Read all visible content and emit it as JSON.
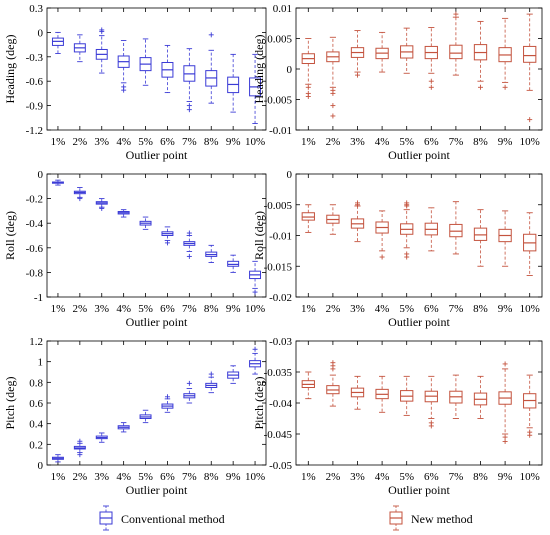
{
  "chart_data": [
    {
      "type": "box",
      "method": "Conventional method",
      "color": "#3b3bd6",
      "categories": [
        "1%",
        "2%",
        "3%",
        "4%",
        "5%",
        "6%",
        "7%",
        "8%",
        "9%",
        "10%"
      ],
      "xlabel": "Outlier point",
      "ylabel": "Heading (deg)",
      "ylim": [
        -1.2,
        0.3
      ],
      "yticks": [
        -1.2,
        -0.9,
        -0.6,
        -0.3,
        0,
        0.3
      ],
      "ytick_labels": [
        "-1.2",
        "-0.9",
        "-0.6",
        "-0.3",
        "0",
        "0.3"
      ],
      "boxes": [
        {
          "whisker_low": -0.26,
          "q1": -0.16,
          "median": -0.11,
          "q3": -0.07,
          "whisker_high": 0.0,
          "outliers": []
        },
        {
          "whisker_low": -0.36,
          "q1": -0.24,
          "median": -0.19,
          "q3": -0.14,
          "whisker_high": -0.03,
          "outliers": []
        },
        {
          "whisker_low": -0.5,
          "q1": -0.33,
          "median": -0.27,
          "q3": -0.21,
          "whisker_high": -0.04,
          "outliers": [
            0.01,
            0.03
          ]
        },
        {
          "whisker_low": -0.62,
          "q1": -0.43,
          "median": -0.36,
          "q3": -0.29,
          "whisker_high": -0.1,
          "outliers": [
            -0.67,
            -0.71
          ]
        },
        {
          "whisker_low": -0.65,
          "q1": -0.47,
          "median": -0.39,
          "q3": -0.31,
          "whisker_high": -0.08,
          "outliers": []
        },
        {
          "whisker_low": -0.74,
          "q1": -0.55,
          "median": -0.46,
          "q3": -0.37,
          "whisker_high": -0.16,
          "outliers": []
        },
        {
          "whisker_low": -0.85,
          "q1": -0.6,
          "median": -0.51,
          "q3": -0.41,
          "whisker_high": -0.2,
          "outliers": [
            -0.9,
            -0.95
          ]
        },
        {
          "whisker_low": -0.87,
          "q1": -0.66,
          "median": -0.56,
          "q3": -0.47,
          "whisker_high": -0.22,
          "outliers": [
            -0.03
          ]
        },
        {
          "whisker_low": -0.98,
          "q1": -0.74,
          "median": -0.64,
          "q3": -0.55,
          "whisker_high": -0.27,
          "outliers": []
        },
        {
          "whisker_low": -1.12,
          "q1": -0.78,
          "median": -0.67,
          "q3": -0.56,
          "whisker_high": -0.27,
          "outliers": []
        }
      ]
    },
    {
      "type": "box",
      "method": "New method",
      "color": "#c4533e",
      "categories": [
        "1%",
        "2%",
        "3%",
        "4%",
        "5%",
        "6%",
        "7%",
        "8%",
        "9%",
        "10%"
      ],
      "xlabel": "Outlier point",
      "ylabel": "Heading (deg)",
      "ylim": [
        -0.01,
        0.01
      ],
      "yticks": [
        -0.01,
        -0.005,
        0,
        0.005,
        0.01
      ],
      "ytick_labels": [
        "-0.01",
        "-0.005",
        "0",
        "0.005",
        "0.01"
      ],
      "boxes": [
        {
          "whisker_low": -0.0025,
          "q1": 0.0009,
          "median": 0.0017,
          "q3": 0.0025,
          "whisker_high": 0.005,
          "outliers": [
            -0.003,
            -0.004,
            -0.0045
          ]
        },
        {
          "whisker_low": -0.003,
          "q1": 0.0012,
          "median": 0.002,
          "q3": 0.0028,
          "whisker_high": 0.0052,
          "outliers": [
            -0.0035,
            -0.004,
            -0.006,
            -0.0077
          ]
        },
        {
          "whisker_low": -0.0005,
          "q1": 0.0019,
          "median": 0.0027,
          "q3": 0.0035,
          "whisker_high": 0.0063,
          "outliers": [
            -0.001
          ]
        },
        {
          "whisker_low": -0.0005,
          "q1": 0.0017,
          "median": 0.0026,
          "q3": 0.0034,
          "whisker_high": 0.006,
          "outliers": []
        },
        {
          "whisker_low": -0.0007,
          "q1": 0.0018,
          "median": 0.0028,
          "q3": 0.0038,
          "whisker_high": 0.0067,
          "outliers": []
        },
        {
          "whisker_low": -0.0007,
          "q1": 0.0017,
          "median": 0.0027,
          "q3": 0.0037,
          "whisker_high": 0.0068,
          "outliers": [
            -0.002,
            -0.003
          ]
        },
        {
          "whisker_low": -0.001,
          "q1": 0.0017,
          "median": 0.0026,
          "q3": 0.0039,
          "whisker_high": 0.0085,
          "outliers": [
            0.009
          ]
        },
        {
          "whisker_low": -0.002,
          "q1": 0.0015,
          "median": 0.0027,
          "q3": 0.004,
          "whisker_high": 0.0078,
          "outliers": [
            -0.003
          ]
        },
        {
          "whisker_low": -0.0022,
          "q1": 0.0012,
          "median": 0.0023,
          "q3": 0.0035,
          "whisker_high": 0.0083,
          "outliers": [
            -0.003
          ]
        },
        {
          "whisker_low": -0.0035,
          "q1": 0.0011,
          "median": 0.0022,
          "q3": 0.0037,
          "whisker_high": 0.009,
          "outliers": [
            -0.0083
          ]
        }
      ]
    },
    {
      "type": "box",
      "method": "Conventional method",
      "color": "#3b3bd6",
      "categories": [
        "1%",
        "2%",
        "3%",
        "4%",
        "5%",
        "6%",
        "7%",
        "8%",
        "9%",
        "10%"
      ],
      "xlabel": "Outlier point",
      "ylabel": "Roll (deg)",
      "ylim": [
        -1,
        0
      ],
      "yticks": [
        -1,
        -0.8,
        -0.6,
        -0.4,
        -0.2,
        0
      ],
      "ytick_labels": [
        "-1",
        "-0.8",
        "-0.6",
        "-0.4",
        "-0.2",
        "0"
      ],
      "boxes": [
        {
          "whisker_low": -0.09,
          "q1": -0.075,
          "median": -0.07,
          "q3": -0.065,
          "whisker_high": -0.05,
          "outliers": []
        },
        {
          "whisker_low": -0.19,
          "q1": -0.16,
          "median": -0.15,
          "q3": -0.14,
          "whisker_high": -0.11,
          "outliers": [
            -0.2
          ]
        },
        {
          "whisker_low": -0.27,
          "q1": -0.245,
          "median": -0.235,
          "q3": -0.225,
          "whisker_high": -0.2,
          "outliers": [
            -0.28
          ]
        },
        {
          "whisker_low": -0.35,
          "q1": -0.325,
          "median": -0.315,
          "q3": -0.305,
          "whisker_high": -0.29,
          "outliers": []
        },
        {
          "whisker_low": -0.45,
          "q1": -0.415,
          "median": -0.4,
          "q3": -0.385,
          "whisker_high": -0.35,
          "outliers": []
        },
        {
          "whisker_low": -0.54,
          "q1": -0.5,
          "median": -0.485,
          "q3": -0.47,
          "whisker_high": -0.43,
          "outliers": [
            -0.56
          ]
        },
        {
          "whisker_low": -0.63,
          "q1": -0.58,
          "median": -0.565,
          "q3": -0.55,
          "whisker_high": -0.5,
          "outliers": [
            -0.48,
            -0.67
          ]
        },
        {
          "whisker_low": -0.72,
          "q1": -0.67,
          "median": -0.655,
          "q3": -0.635,
          "whisker_high": -0.58,
          "outliers": []
        },
        {
          "whisker_low": -0.8,
          "q1": -0.75,
          "median": -0.735,
          "q3": -0.71,
          "whisker_high": -0.66,
          "outliers": []
        },
        {
          "whisker_low": -0.93,
          "q1": -0.85,
          "median": -0.82,
          "q3": -0.79,
          "whisker_high": -0.71,
          "outliers": [
            -0.96
          ]
        }
      ]
    },
    {
      "type": "box",
      "method": "New method",
      "color": "#c4533e",
      "categories": [
        "1%",
        "2%",
        "3%",
        "4%",
        "5%",
        "6%",
        "7%",
        "8%",
        "9%",
        "10%"
      ],
      "xlabel": "Outlier point",
      "ylabel": "Roll (deg)",
      "ylim": [
        -0.02,
        0
      ],
      "yticks": [
        -0.02,
        -0.015,
        -0.01,
        -0.005,
        0
      ],
      "ytick_labels": [
        "-0.02",
        "-0.015",
        "-0.01",
        "-0.005",
        "0"
      ],
      "boxes": [
        {
          "whisker_low": -0.0095,
          "q1": -0.0075,
          "median": -0.007,
          "q3": -0.0063,
          "whisker_high": -0.005,
          "outliers": []
        },
        {
          "whisker_low": -0.0098,
          "q1": -0.008,
          "median": -0.0074,
          "q3": -0.0067,
          "whisker_high": -0.005,
          "outliers": []
        },
        {
          "whisker_low": -0.011,
          "q1": -0.0088,
          "median": -0.0081,
          "q3": -0.0073,
          "whisker_high": -0.0052,
          "outliers": [
            -0.0047,
            -0.005
          ]
        },
        {
          "whisker_low": -0.0125,
          "q1": -0.0096,
          "median": -0.0087,
          "q3": -0.0078,
          "whisker_high": -0.006,
          "outliers": [
            -0.0135
          ]
        },
        {
          "whisker_low": -0.012,
          "q1": -0.0098,
          "median": -0.009,
          "q3": -0.0081,
          "whisker_high": -0.0058,
          "outliers": [
            -0.0047,
            -0.005,
            -0.0052,
            -0.013,
            -0.0135
          ]
        },
        {
          "whisker_low": -0.0125,
          "q1": -0.0099,
          "median": -0.009,
          "q3": -0.008,
          "whisker_high": -0.0055,
          "outliers": []
        },
        {
          "whisker_low": -0.013,
          "q1": -0.0102,
          "median": -0.0093,
          "q3": -0.0082,
          "whisker_high": -0.0045,
          "outliers": []
        },
        {
          "whisker_low": -0.015,
          "q1": -0.0108,
          "median": -0.0099,
          "q3": -0.0088,
          "whisker_high": -0.0058,
          "outliers": []
        },
        {
          "whisker_low": -0.015,
          "q1": -0.011,
          "median": -0.01,
          "q3": -0.009,
          "whisker_high": -0.006,
          "outliers": []
        },
        {
          "whisker_low": -0.0165,
          "q1": -0.0125,
          "median": -0.0112,
          "q3": -0.0098,
          "whisker_high": -0.0063,
          "outliers": []
        }
      ]
    },
    {
      "type": "box",
      "method": "Conventional method",
      "color": "#3b3bd6",
      "categories": [
        "1%",
        "2%",
        "3%",
        "4%",
        "5%",
        "6%",
        "7%",
        "8%",
        "9%",
        "10%"
      ],
      "xlabel": "Outlier point",
      "ylabel": "Pitch (deg)",
      "ylim": [
        0,
        1.2
      ],
      "yticks": [
        0,
        0.2,
        0.4,
        0.6,
        0.8,
        1,
        1.2
      ],
      "ytick_labels": [
        "0",
        "0.2",
        "0.4",
        "0.6",
        "0.8",
        "1",
        "1.2"
      ],
      "boxes": [
        {
          "whisker_low": 0.03,
          "q1": 0.055,
          "median": 0.065,
          "q3": 0.075,
          "whisker_high": 0.1,
          "outliers": []
        },
        {
          "whisker_low": 0.12,
          "q1": 0.155,
          "median": 0.165,
          "q3": 0.18,
          "whisker_high": 0.21,
          "outliers": [
            0.1,
            0.23
          ]
        },
        {
          "whisker_low": 0.22,
          "q1": 0.255,
          "median": 0.265,
          "q3": 0.28,
          "whisker_high": 0.31,
          "outliers": []
        },
        {
          "whisker_low": 0.32,
          "q1": 0.35,
          "median": 0.365,
          "q3": 0.38,
          "whisker_high": 0.41,
          "outliers": []
        },
        {
          "whisker_low": 0.41,
          "q1": 0.45,
          "median": 0.465,
          "q3": 0.485,
          "whisker_high": 0.53,
          "outliers": []
        },
        {
          "whisker_low": 0.51,
          "q1": 0.55,
          "median": 0.57,
          "q3": 0.59,
          "whisker_high": 0.64,
          "outliers": [
            0.66
          ]
        },
        {
          "whisker_low": 0.6,
          "q1": 0.65,
          "median": 0.67,
          "q3": 0.69,
          "whisker_high": 0.74,
          "outliers": [
            0.79
          ]
        },
        {
          "whisker_low": 0.7,
          "q1": 0.75,
          "median": 0.77,
          "q3": 0.79,
          "whisker_high": 0.85,
          "outliers": [
            0.88
          ]
        },
        {
          "whisker_low": 0.79,
          "q1": 0.84,
          "median": 0.87,
          "q3": 0.9,
          "whisker_high": 0.96,
          "outliers": []
        },
        {
          "whisker_low": 0.88,
          "q1": 0.95,
          "median": 0.98,
          "q3": 1.01,
          "whisker_high": 1.08,
          "outliers": [
            1.12
          ]
        }
      ]
    },
    {
      "type": "box",
      "method": "New method",
      "color": "#c4533e",
      "categories": [
        "1%",
        "2%",
        "3%",
        "4%",
        "5%",
        "6%",
        "7%",
        "8%",
        "9%",
        "10%"
      ],
      "xlabel": "Outlier point",
      "ylabel": "Pitch (deg)",
      "ylim": [
        -0.05,
        -0.03
      ],
      "yticks": [
        -0.05,
        -0.045,
        -0.04,
        -0.035,
        -0.03
      ],
      "ytick_labels": [
        "-0.05",
        "-0.045",
        "-0.04",
        "-0.035",
        "-0.03"
      ],
      "boxes": [
        {
          "whisker_low": -0.0393,
          "q1": -0.0375,
          "median": -0.037,
          "q3": -0.0364,
          "whisker_high": -0.035,
          "outliers": []
        },
        {
          "whisker_low": -0.0405,
          "q1": -0.0385,
          "median": -0.0379,
          "q3": -0.0372,
          "whisker_high": -0.0355,
          "outliers": [
            -0.0335,
            -0.034,
            -0.0345
          ]
        },
        {
          "whisker_low": -0.041,
          "q1": -0.039,
          "median": -0.0383,
          "q3": -0.0376,
          "whisker_high": -0.0357,
          "outliers": []
        },
        {
          "whisker_low": -0.0415,
          "q1": -0.0393,
          "median": -0.0386,
          "q3": -0.0378,
          "whisker_high": -0.0357,
          "outliers": []
        },
        {
          "whisker_low": -0.042,
          "q1": -0.0397,
          "median": -0.0389,
          "q3": -0.038,
          "whisker_high": -0.0357,
          "outliers": []
        },
        {
          "whisker_low": -0.0425,
          "q1": -0.0398,
          "median": -0.0389,
          "q3": -0.0381,
          "whisker_high": -0.0357,
          "outliers": [
            -0.0432,
            -0.0437
          ]
        },
        {
          "whisker_low": -0.0425,
          "q1": -0.04,
          "median": -0.039,
          "q3": -0.0381,
          "whisker_high": -0.0355,
          "outliers": []
        },
        {
          "whisker_low": -0.0425,
          "q1": -0.0403,
          "median": -0.0394,
          "q3": -0.0384,
          "whisker_high": -0.0357,
          "outliers": []
        },
        {
          "whisker_low": -0.045,
          "q1": -0.0402,
          "median": -0.0392,
          "q3": -0.0382,
          "whisker_high": -0.0345,
          "outliers": [
            -0.0455,
            -0.0462,
            -0.0337
          ]
        },
        {
          "whisker_low": -0.044,
          "q1": -0.0408,
          "median": -0.0396,
          "q3": -0.0385,
          "whisker_high": -0.0355,
          "outliers": [
            -0.0447,
            -0.0452
          ]
        }
      ]
    }
  ],
  "legend": [
    {
      "label": "Conventional method",
      "color": "#3b3bd6"
    },
    {
      "label": "New method",
      "color": "#c4533e"
    }
  ]
}
